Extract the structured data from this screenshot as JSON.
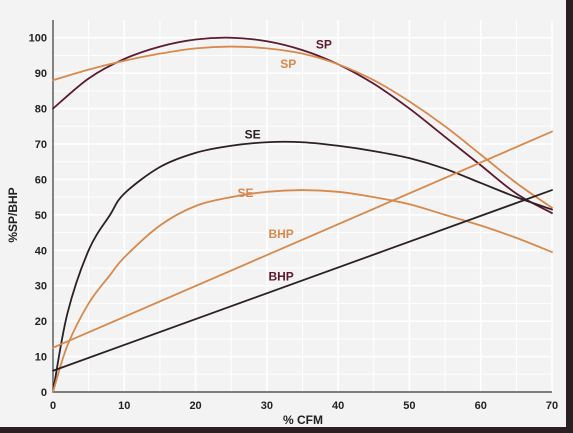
{
  "chart_data": {
    "type": "line",
    "title": "",
    "xlabel": "% CFM",
    "ylabel": "%SP/BHP",
    "xlim": [
      0,
      70
    ],
    "ylim": [
      0,
      105
    ],
    "x_ticks": [
      0,
      10,
      20,
      30,
      40,
      50,
      60,
      70
    ],
    "y_ticks": [
      0,
      10,
      20,
      30,
      40,
      50,
      60,
      70,
      80,
      90,
      100
    ],
    "grid": true,
    "legend": "none",
    "colors": {
      "plot_background": "#f3f3f3",
      "grid": "#ffffff",
      "dark_series": "#2b2024",
      "maroon_series": "#5c1a2e",
      "orange_series": "#d8894c"
    },
    "series": [
      {
        "name": "SP",
        "color": "#5c1a2e",
        "x": [
          0,
          5,
          10,
          15,
          20,
          25,
          30,
          35,
          40,
          45,
          50,
          55,
          60,
          65,
          70
        ],
        "y": [
          80,
          88.5,
          94,
          97.5,
          99.5,
          100,
          99,
          96.5,
          92.5,
          87,
          80,
          72,
          64,
          56,
          50.5
        ]
      },
      {
        "name": "SP",
        "color": "#d8894c",
        "x": [
          0,
          5,
          10,
          15,
          20,
          25,
          30,
          35,
          40,
          45,
          50,
          55,
          60,
          65,
          70
        ],
        "y": [
          88,
          91,
          93.5,
          95.5,
          97,
          97.5,
          97,
          95.5,
          92.5,
          88,
          82,
          75,
          67,
          59,
          52
        ]
      },
      {
        "name": "SE",
        "color": "#2b2024",
        "x": [
          0,
          2,
          5,
          8,
          10,
          15,
          20,
          25,
          30,
          35,
          40,
          45,
          50,
          55,
          60,
          65,
          70
        ],
        "y": [
          0,
          22,
          40,
          50,
          56,
          63.5,
          67.5,
          69.5,
          70.5,
          70.5,
          69.5,
          68,
          66,
          63,
          59,
          55,
          51.5
        ]
      },
      {
        "name": "SE",
        "color": "#d8894c",
        "x": [
          0,
          2,
          5,
          8,
          10,
          15,
          20,
          25,
          30,
          35,
          40,
          45,
          50,
          55,
          60,
          65,
          70
        ],
        "y": [
          0,
          13,
          25,
          33,
          38,
          47,
          52.5,
          55,
          56.5,
          57,
          56.5,
          55,
          53,
          50,
          47,
          43.5,
          39.5
        ]
      },
      {
        "name": "BHP",
        "color": "#d8894c",
        "x": [
          0,
          70
        ],
        "y": [
          12.5,
          73.5
        ]
      },
      {
        "name": "BHP",
        "color": "#2b2024",
        "x": [
          0,
          70
        ],
        "y": [
          6,
          57
        ]
      }
    ],
    "annotations": [
      {
        "text": "SP",
        "x": 38,
        "y": 97,
        "color": "#5c1a2e"
      },
      {
        "text": "SP",
        "x": 33,
        "y": 91.5,
        "color": "#d8894c"
      },
      {
        "text": "SE",
        "x": 28,
        "y": 71.5,
        "color": "#2b2024"
      },
      {
        "text": "SE",
        "x": 27,
        "y": 55,
        "color": "#d8894c"
      },
      {
        "text": "BHP",
        "x": 32,
        "y": 43.5,
        "color": "#d8894c"
      },
      {
        "text": "BHP",
        "x": 32,
        "y": 31.5,
        "color": "#5c1a2e"
      }
    ]
  }
}
